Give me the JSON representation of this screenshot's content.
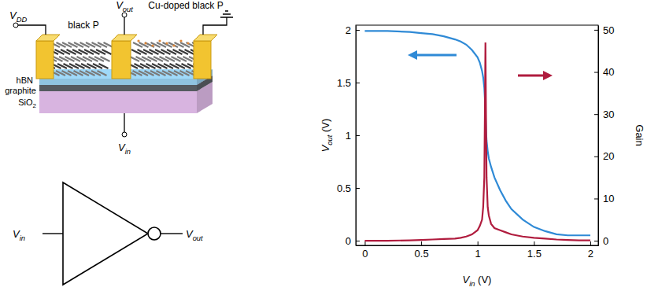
{
  "chart_data": {
    "type": "line",
    "x_label": "Vin (V)",
    "y_label": "Vout (V)",
    "y2_label": "Gain",
    "x": [
      0,
      0.2,
      0.4,
      0.5,
      0.6,
      0.7,
      0.8,
      0.85,
      0.9,
      0.95,
      1.0,
      1.02,
      1.04,
      1.05,
      1.06,
      1.065,
      1.07,
      1.075,
      1.08,
      1.09,
      1.1,
      1.12,
      1.15,
      1.2,
      1.25,
      1.3,
      1.4,
      1.5,
      1.6,
      1.7,
      1.8,
      1.9,
      2.0
    ],
    "series": [
      {
        "color": "#2f8ad6",
        "values": [
          1.99,
          1.99,
          1.98,
          1.97,
          1.96,
          1.94,
          1.91,
          1.89,
          1.86,
          1.81,
          1.74,
          1.69,
          1.61,
          1.55,
          1.45,
          1.35,
          1.2,
          1.05,
          0.95,
          0.85,
          0.78,
          0.7,
          0.6,
          0.48,
          0.38,
          0.3,
          0.2,
          0.13,
          0.09,
          0.06,
          0.05,
          0.05,
          0.05
        ]
      },
      {
        "color": "#b01c3e",
        "axis": "y2",
        "values": [
          0,
          0,
          0.1,
          0.2,
          0.3,
          0.4,
          0.5,
          0.7,
          1,
          1.5,
          2.5,
          3.5,
          5,
          8,
          15,
          30,
          47,
          30,
          15,
          8,
          6,
          4,
          3,
          2.5,
          2,
          1.5,
          1,
          0.7,
          0.5,
          0.3,
          0.2,
          0.1,
          0.1
        ]
      }
    ],
    "xlim": [
      -0.08,
      2.07
    ],
    "xticks": [
      0,
      0.5,
      1,
      1.5,
      2
    ],
    "ylim": [
      -0.045,
      2.045
    ],
    "yticks": [
      0,
      0.5,
      1,
      1.5,
      2
    ],
    "y2lim": [
      -1.1,
      51.1
    ],
    "y2ticks": [
      0,
      10,
      20,
      30,
      40,
      50
    ],
    "grid": false
  },
  "diagram": {
    "vdd": "VDD",
    "vout": "Vout",
    "vin": "Vin",
    "channel_left": "black P",
    "channel_right": "Cu-doped black P",
    "layers": [
      "hBN",
      "graphite",
      "SiO2"
    ],
    "inverter": {
      "input": "Vin",
      "output": "Vout"
    }
  }
}
